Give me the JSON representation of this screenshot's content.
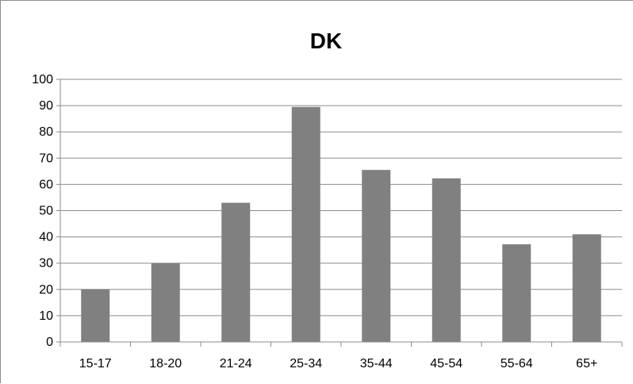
{
  "chart_data": {
    "type": "bar",
    "title": "DK",
    "categories": [
      "15-17",
      "18-20",
      "21-24",
      "25-34",
      "35-44",
      "45-54",
      "55-64",
      "65+"
    ],
    "values": [
      20,
      30,
      53,
      89.5,
      65.5,
      62.3,
      37.2,
      41
    ],
    "xlabel": "",
    "ylabel": "",
    "ylim": [
      0,
      100
    ],
    "yticks": [
      0,
      10,
      20,
      30,
      40,
      50,
      60,
      70,
      80,
      90,
      100
    ],
    "grid": true,
    "legend": "none",
    "bar_color": "#808080"
  }
}
